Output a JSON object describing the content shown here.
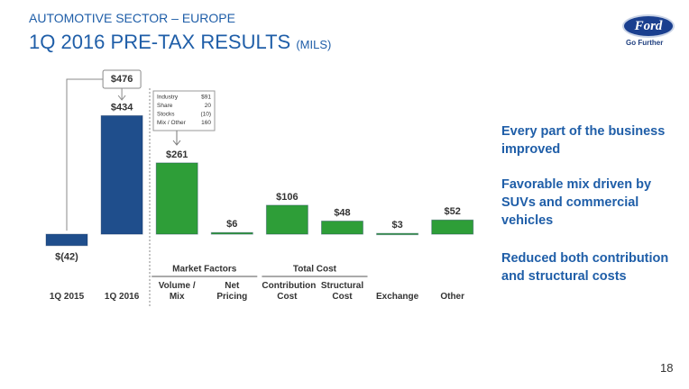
{
  "header": {
    "section": "AUTOMOTIVE SECTOR – EUROPE",
    "title": "1Q 2016 PRE-TAX RESULTS",
    "units": "(MILS)"
  },
  "logo": {
    "brand": "Ford",
    "tagline": "Go Further"
  },
  "chart_data": {
    "type": "bar",
    "categories": [
      "1Q 2015",
      "1Q 2016",
      "Volume / Mix",
      "Net Pricing",
      "Contribution Cost",
      "Structural Cost",
      "Exchange",
      "Other"
    ],
    "values": [
      -42,
      434,
      261,
      6,
      106,
      48,
      3,
      52
    ],
    "value_labels": [
      "$(42)",
      "$434",
      "$261",
      "$6",
      "$106",
      "$48",
      "$3",
      "$52"
    ],
    "colors": [
      "#1f4e8c",
      "#1f4e8c",
      "#2e9e38",
      "#2e9e38",
      "#2e9e38",
      "#2e9e38",
      "#2e9e38",
      "#2e9e38"
    ],
    "ylim": [
      -100,
      500
    ],
    "groups": [
      "Market Factors",
      "Total Cost"
    ],
    "total_change": {
      "value": 476,
      "label": "$476"
    },
    "breakdown": [
      [
        "Industry",
        "$91"
      ],
      [
        "Share",
        "20"
      ],
      [
        "Stocks",
        "(10)"
      ],
      [
        "Mix / Other",
        "160"
      ]
    ]
  },
  "bullets": [
    "Every part of the business improved",
    "Favorable mix driven by SUVs and commercial vehicles",
    "Reduced both contribution and structural costs"
  ],
  "page_number": "18"
}
